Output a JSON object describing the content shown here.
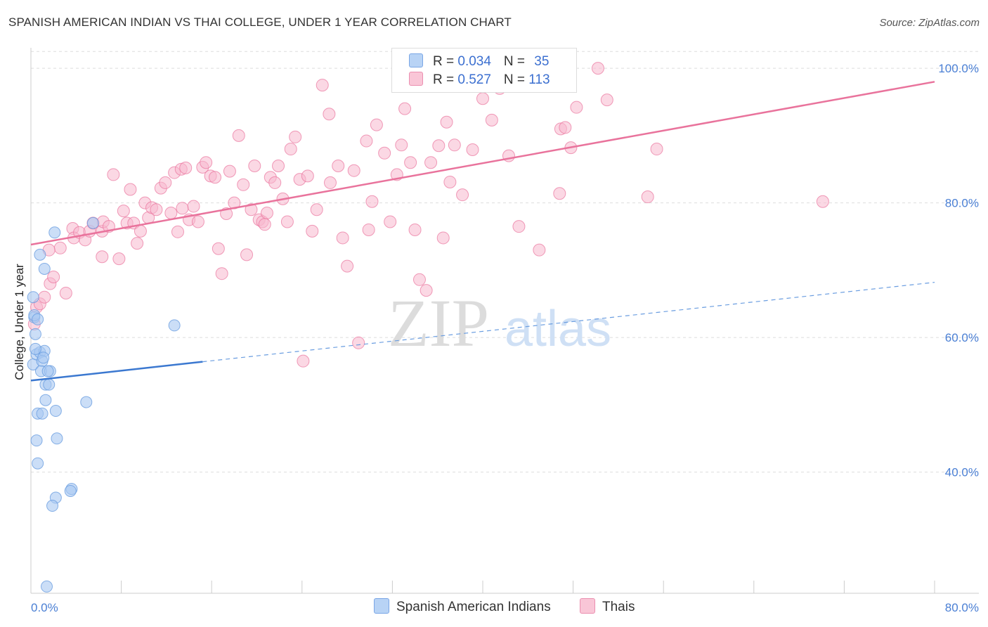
{
  "title": "SPANISH AMERICAN INDIAN VS THAI COLLEGE, UNDER 1 YEAR CORRELATION CHART",
  "source": "Source: ZipAtlas.com",
  "watermark": {
    "zip": "ZIP",
    "atlas": "atlas"
  },
  "legend": {
    "rows": [
      {
        "r_label": "R = ",
        "r_value": "0.034",
        "n_label": "N = ",
        "n_value": "35",
        "color": "#a9c8f2"
      },
      {
        "r_label": "R = ",
        "r_value": "0.527",
        "n_label": "N = ",
        "n_value": "113",
        "color": "#f7b8cd"
      }
    ]
  },
  "bottom_legend": [
    {
      "label": "Spanish American Indians",
      "color": "#a9c8f2"
    },
    {
      "label": "Thais",
      "color": "#f7b8cd"
    }
  ],
  "chart_data": {
    "type": "scatter",
    "title": "SPANISH AMERICAN INDIAN VS THAI COLLEGE, UNDER 1 YEAR CORRELATION CHART",
    "xlabel": "",
    "ylabel": "College, Under 1 year",
    "xlim": [
      0,
      80
    ],
    "ylim": [
      22,
      102
    ],
    "x_tick_labels": [
      "0.0%",
      "80.0%"
    ],
    "y_tick_labels": [
      {
        "value": 100,
        "label": "100.0%"
      },
      {
        "value": 80,
        "label": "80.0%"
      },
      {
        "value": 60,
        "label": "60.0%"
      },
      {
        "value": 40,
        "label": "40.0%"
      }
    ],
    "grid": true,
    "series": [
      {
        "name": "Spanish American Indians",
        "color": "#6a9de0",
        "fill": "#a9c8f2",
        "trend": {
          "x": [
            0,
            15.2
          ],
          "y": [
            53.6,
            56.4
          ]
        },
        "trend_extended": {
          "x": [
            15.2,
            80
          ],
          "y": [
            56.4,
            68.2
          ]
        },
        "points": [
          [
            0.2,
            66.0
          ],
          [
            0.3,
            63.0
          ],
          [
            0.4,
            60.5
          ],
          [
            0.2,
            56.0
          ],
          [
            0.5,
            57.5
          ],
          [
            0.8,
            57.8
          ],
          [
            1.2,
            58.0
          ],
          [
            1.0,
            56.5
          ],
          [
            0.9,
            55.0
          ],
          [
            1.7,
            55.0
          ],
          [
            1.3,
            53.0
          ],
          [
            1.6,
            53.0
          ],
          [
            1.3,
            50.7
          ],
          [
            2.2,
            49.1
          ],
          [
            0.6,
            48.7
          ],
          [
            1.0,
            48.7
          ],
          [
            4.9,
            50.4
          ],
          [
            0.5,
            44.7
          ],
          [
            2.3,
            45.0
          ],
          [
            0.6,
            41.3
          ],
          [
            2.2,
            36.2
          ],
          [
            1.9,
            35.0
          ],
          [
            3.6,
            37.5
          ],
          [
            3.5,
            37.2
          ],
          [
            1.4,
            23.0
          ],
          [
            0.8,
            72.3
          ],
          [
            1.2,
            70.2
          ],
          [
            2.1,
            75.6
          ],
          [
            5.5,
            77.0
          ],
          [
            12.7,
            61.8
          ],
          [
            0.3,
            63.3
          ],
          [
            0.6,
            62.7
          ],
          [
            1.1,
            57.0
          ],
          [
            1.5,
            55.0
          ],
          [
            0.4,
            58.3
          ]
        ]
      },
      {
        "name": "Thais",
        "color": "#e9739c",
        "fill": "#f7b8cd",
        "trend": {
          "x": [
            0,
            80
          ],
          "y": [
            73.8,
            98.0
          ]
        },
        "points": [
          [
            0.3,
            62.0
          ],
          [
            0.5,
            64.5
          ],
          [
            0.8,
            65.0
          ],
          [
            1.2,
            66.0
          ],
          [
            1.7,
            68.0
          ],
          [
            2.0,
            69.0
          ],
          [
            3.1,
            66.6
          ],
          [
            2.6,
            73.3
          ],
          [
            3.7,
            76.2
          ],
          [
            3.8,
            74.8
          ],
          [
            4.3,
            75.6
          ],
          [
            4.8,
            74.5
          ],
          [
            5.2,
            75.8
          ],
          [
            5.5,
            77.0
          ],
          [
            6.3,
            75.8
          ],
          [
            6.4,
            77.2
          ],
          [
            6.9,
            76.5
          ],
          [
            7.3,
            84.2
          ],
          [
            7.8,
            71.7
          ],
          [
            8.2,
            78.8
          ],
          [
            8.5,
            77.0
          ],
          [
            8.8,
            82.0
          ],
          [
            9.1,
            77.0
          ],
          [
            9.4,
            74.0
          ],
          [
            9.7,
            75.8
          ],
          [
            10.1,
            80.0
          ],
          [
            10.4,
            77.8
          ],
          [
            10.7,
            79.3
          ],
          [
            11.1,
            79.0
          ],
          [
            11.5,
            82.2
          ],
          [
            11.9,
            83.0
          ],
          [
            12.4,
            78.5
          ],
          [
            12.7,
            84.5
          ],
          [
            13.0,
            75.7
          ],
          [
            13.3,
            85.0
          ],
          [
            13.7,
            85.2
          ],
          [
            14.0,
            77.5
          ],
          [
            14.4,
            79.5
          ],
          [
            14.8,
            77.2
          ],
          [
            15.2,
            85.3
          ],
          [
            15.5,
            86.0
          ],
          [
            15.9,
            84.0
          ],
          [
            16.3,
            83.8
          ],
          [
            16.6,
            73.2
          ],
          [
            16.9,
            69.5
          ],
          [
            17.3,
            78.4
          ],
          [
            17.6,
            84.7
          ],
          [
            18.0,
            80.0
          ],
          [
            18.4,
            90.0
          ],
          [
            18.8,
            82.7
          ],
          [
            19.1,
            72.3
          ],
          [
            19.5,
            79.0
          ],
          [
            19.8,
            85.5
          ],
          [
            20.2,
            77.5
          ],
          [
            20.5,
            77.2
          ],
          [
            20.9,
            78.5
          ],
          [
            21.2,
            83.8
          ],
          [
            21.6,
            83.0
          ],
          [
            21.9,
            85.5
          ],
          [
            22.3,
            80.6
          ],
          [
            22.7,
            77.2
          ],
          [
            23.0,
            88.0
          ],
          [
            23.4,
            89.8
          ],
          [
            23.8,
            83.5
          ],
          [
            24.1,
            56.5
          ],
          [
            24.5,
            84.0
          ],
          [
            24.9,
            75.8
          ],
          [
            25.3,
            79.0
          ],
          [
            25.8,
            97.5
          ],
          [
            26.5,
            83.0
          ],
          [
            27.2,
            85.5
          ],
          [
            27.6,
            74.8
          ],
          [
            28.0,
            70.6
          ],
          [
            28.6,
            84.8
          ],
          [
            29.0,
            59.2
          ],
          [
            29.7,
            89.2
          ],
          [
            30.2,
            80.2
          ],
          [
            30.6,
            91.6
          ],
          [
            31.3,
            87.4
          ],
          [
            31.8,
            77.2
          ],
          [
            32.4,
            84.2
          ],
          [
            32.8,
            88.6
          ],
          [
            33.1,
            94.0
          ],
          [
            33.6,
            86.0
          ],
          [
            34.0,
            76.0
          ],
          [
            34.4,
            68.6
          ],
          [
            35.0,
            67.0
          ],
          [
            35.4,
            86.0
          ],
          [
            36.1,
            88.5
          ],
          [
            36.5,
            74.8
          ],
          [
            36.8,
            92.0
          ],
          [
            37.5,
            88.6
          ],
          [
            38.2,
            81.2
          ],
          [
            39.1,
            87.9
          ],
          [
            40.0,
            95.5
          ],
          [
            40.8,
            92.3
          ],
          [
            41.5,
            97.0
          ],
          [
            42.3,
            87.0
          ],
          [
            43.2,
            76.5
          ],
          [
            45.0,
            73.0
          ],
          [
            46.9,
            91.0
          ],
          [
            47.3,
            91.2
          ],
          [
            47.8,
            88.2
          ],
          [
            48.3,
            94.2
          ],
          [
            50.2,
            100.0
          ],
          [
            51.0,
            95.3
          ],
          [
            54.6,
            80.9
          ],
          [
            55.4,
            88.0
          ],
          [
            70.1,
            80.2
          ],
          [
            20.7,
            76.8
          ],
          [
            29.9,
            76.0
          ],
          [
            13.4,
            79.2
          ],
          [
            1.6,
            73.0
          ],
          [
            26.4,
            93.2
          ],
          [
            37.1,
            83.1
          ],
          [
            46.8,
            81.4
          ],
          [
            6.3,
            72.0
          ]
        ]
      }
    ]
  }
}
